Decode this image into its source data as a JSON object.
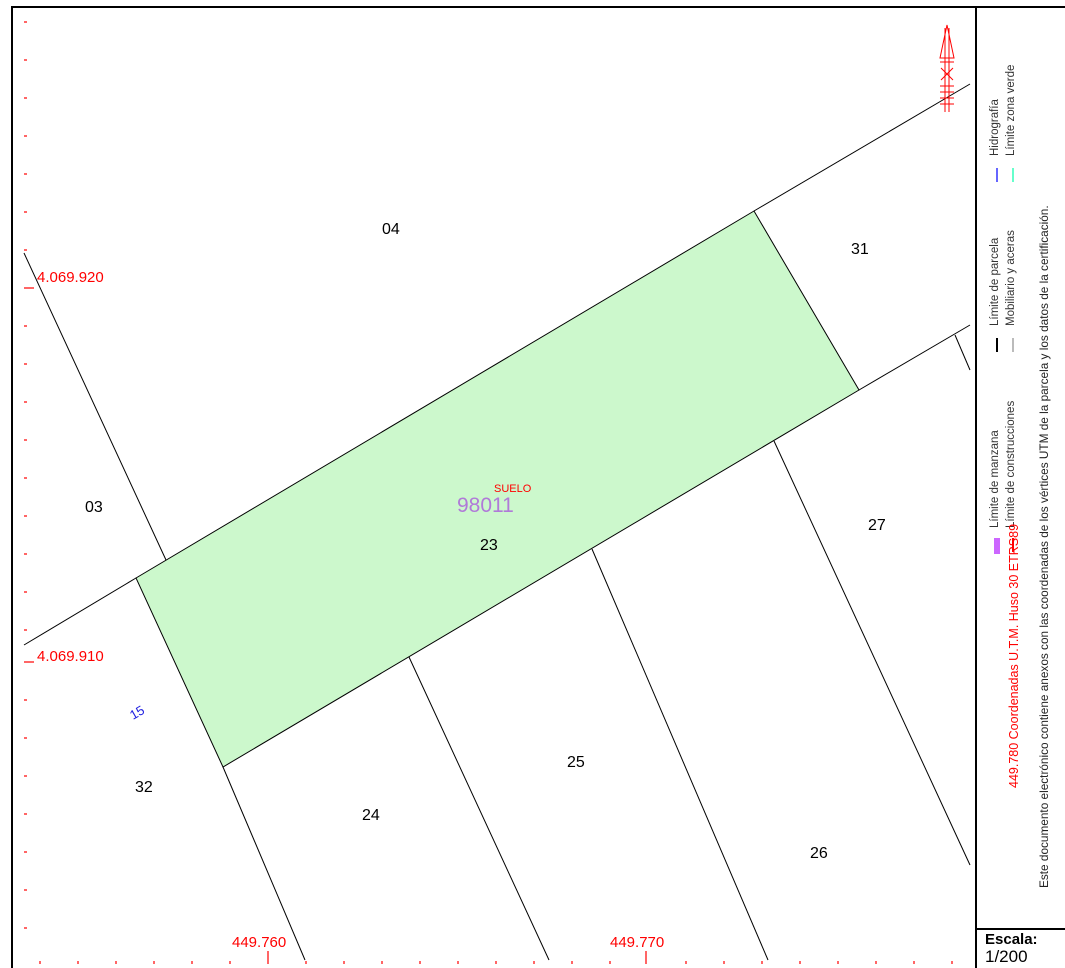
{
  "map": {
    "parcel_ref": "98011",
    "land_type": "SUELO",
    "street_number": "15",
    "parcel_labels": [
      "04",
      "31",
      "03",
      "23",
      "27",
      "32",
      "24",
      "25",
      "26"
    ],
    "coordinates": {
      "y_upper": "4.069.920",
      "y_lower": "4.069.910",
      "x_left": "449.760",
      "x_right": "449.770"
    },
    "colors": {
      "parcel_fill": "#ccf8cc",
      "coordinate_text": "#ff0000",
      "parcel_ref": "#b07ad8",
      "street_number": "#2020e0",
      "north_arrow": "#ff0000"
    },
    "north_arrow_icon": "north-arrow-icon"
  },
  "legend": {
    "manzana": "Límite de manzana",
    "construcciones": "Límite de construcciones",
    "parcela": "Límite de parcela",
    "mobiliario": "Mobiliario y aceras",
    "hidrografia": "Hidrografía",
    "zona_verde": "Límite zona verde",
    "coord_system": "449.780 Coordenadas U.T.M. Huso 30 ETRS89",
    "note": "Este documento electrónico contiene anexos con las coordenadas de los vértices UTM de la parcela y los datos de la certificación.",
    "colors": {
      "manzana": "#cc66ff",
      "construcciones": "#ff0000",
      "parcela": "#000000",
      "mobiliario": "#bbbbbb",
      "hidrografia": "#6666ff",
      "zona_verde": "#66ffcc"
    }
  },
  "scale": {
    "title": "Escala:",
    "value": "1/200"
  }
}
